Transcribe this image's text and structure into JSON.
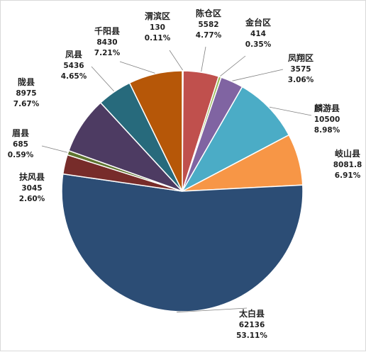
{
  "chart_data": {
    "type": "pie",
    "slices": [
      {
        "name": "渭滨区",
        "value": "130",
        "percent": "0.11%",
        "v": 130,
        "color": "#3a6ea5"
      },
      {
        "name": "陈仓区",
        "value": "5582",
        "percent": "4.77%",
        "v": 5582,
        "color": "#c0504d"
      },
      {
        "name": "金台区",
        "value": "414",
        "percent": "0.35%",
        "v": 414,
        "color": "#9bbb59"
      },
      {
        "name": "凤翔区",
        "value": "3575",
        "percent": "3.06%",
        "v": 3575,
        "color": "#8064a2"
      },
      {
        "name": "麟游县",
        "value": "10500",
        "percent": "8.98%",
        "v": 10500,
        "color": "#4bacc6"
      },
      {
        "name": "岐山县",
        "value": "8081.8",
        "percent": "6.91%",
        "v": 8081.8,
        "color": "#f79646"
      },
      {
        "name": "太白县",
        "value": "62136",
        "percent": "53.11%",
        "v": 62136,
        "color": "#2c4d75"
      },
      {
        "name": "扶风县",
        "value": "3045",
        "percent": "2.60%",
        "v": 3045,
        "color": "#772c2a"
      },
      {
        "name": "眉县",
        "value": "685",
        "percent": "0.59%",
        "v": 685,
        "color": "#5f7530"
      },
      {
        "name": "陇县",
        "value": "8975",
        "percent": "7.67%",
        "v": 8975,
        "color": "#4d3b62"
      },
      {
        "name": "凤县",
        "value": "5436",
        "percent": "4.65%",
        "v": 5436,
        "color": "#276a7c"
      },
      {
        "name": "千阳县",
        "value": "8430",
        "percent": "7.21%",
        "v": 8430,
        "color": "#b65708"
      }
    ],
    "start_angle": "12 o'clock",
    "direction": "clockwise",
    "legend": "none",
    "label_style": "name, value and percent beside each slice with leader lines"
  }
}
